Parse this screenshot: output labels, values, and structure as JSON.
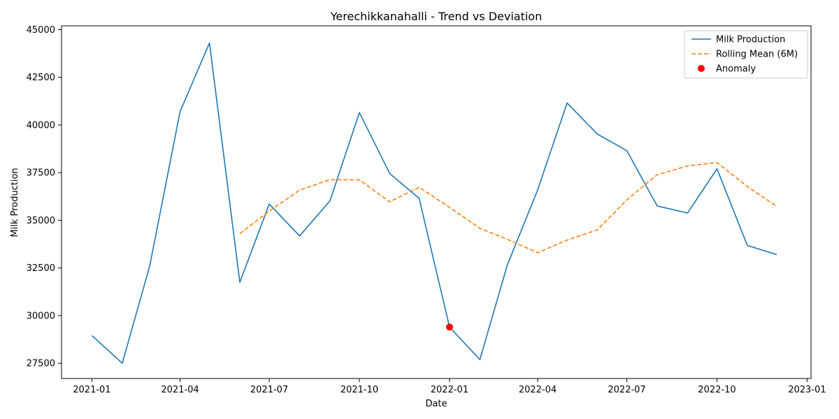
{
  "chart_data": {
    "type": "line",
    "title": "Yerechikkanahalli - Trend vs Deviation",
    "xlabel": "Date",
    "ylabel": "Milk Production",
    "xlim": [
      "2020-12-01",
      "2023-01-05"
    ],
    "ylim": [
      26700,
      45200
    ],
    "x_ticks": [
      "2021-01",
      "2021-04",
      "2021-07",
      "2021-10",
      "2022-01",
      "2022-04",
      "2022-07",
      "2022-10",
      "2023-01"
    ],
    "y_ticks": [
      27500,
      30000,
      32500,
      35000,
      37500,
      40000,
      42500,
      45000
    ],
    "y_tick_labels": [
      "27500",
      "30000",
      "32500",
      "35000",
      "37500",
      "40000",
      "42500",
      "45000"
    ],
    "grid": false,
    "legend_position": "upper right",
    "x": [
      "2021-01-01",
      "2021-02-01",
      "2021-03-01",
      "2021-04-01",
      "2021-05-01",
      "2021-06-01",
      "2021-07-01",
      "2021-08-01",
      "2021-09-01",
      "2021-10-01",
      "2021-11-01",
      "2021-12-01",
      "2022-01-01",
      "2022-02-01",
      "2022-03-01",
      "2022-04-01",
      "2022-05-01",
      "2022-06-01",
      "2022-07-01",
      "2022-08-01",
      "2022-09-01",
      "2022-10-01",
      "2022-11-01",
      "2022-12-01"
    ],
    "series": [
      {
        "name": "Milk Production",
        "style": "solid",
        "color": "#1f77b4",
        "values": [
          28950,
          27500,
          32600,
          40700,
          44300,
          31750,
          35850,
          34180,
          36020,
          40650,
          37450,
          36150,
          29400,
          27690,
          32650,
          36600,
          41150,
          39520,
          38650,
          35750,
          35380,
          37700,
          33680,
          33200
        ]
      },
      {
        "name": "Rolling Mean (6M)",
        "style": "dashed",
        "color": "#ff7f0e",
        "values": [
          null,
          null,
          null,
          null,
          null,
          34300,
          35480,
          36580,
          37130,
          37120,
          35970,
          36730,
          35680,
          34580,
          34000,
          33300,
          33960,
          34500,
          36070,
          37390,
          37850,
          38030,
          36770,
          35730
        ]
      }
    ],
    "anomalies": {
      "name": "Anomaly",
      "color": "#ff0000",
      "points": [
        {
          "x": "2022-01-01",
          "y": 29400
        }
      ]
    }
  }
}
